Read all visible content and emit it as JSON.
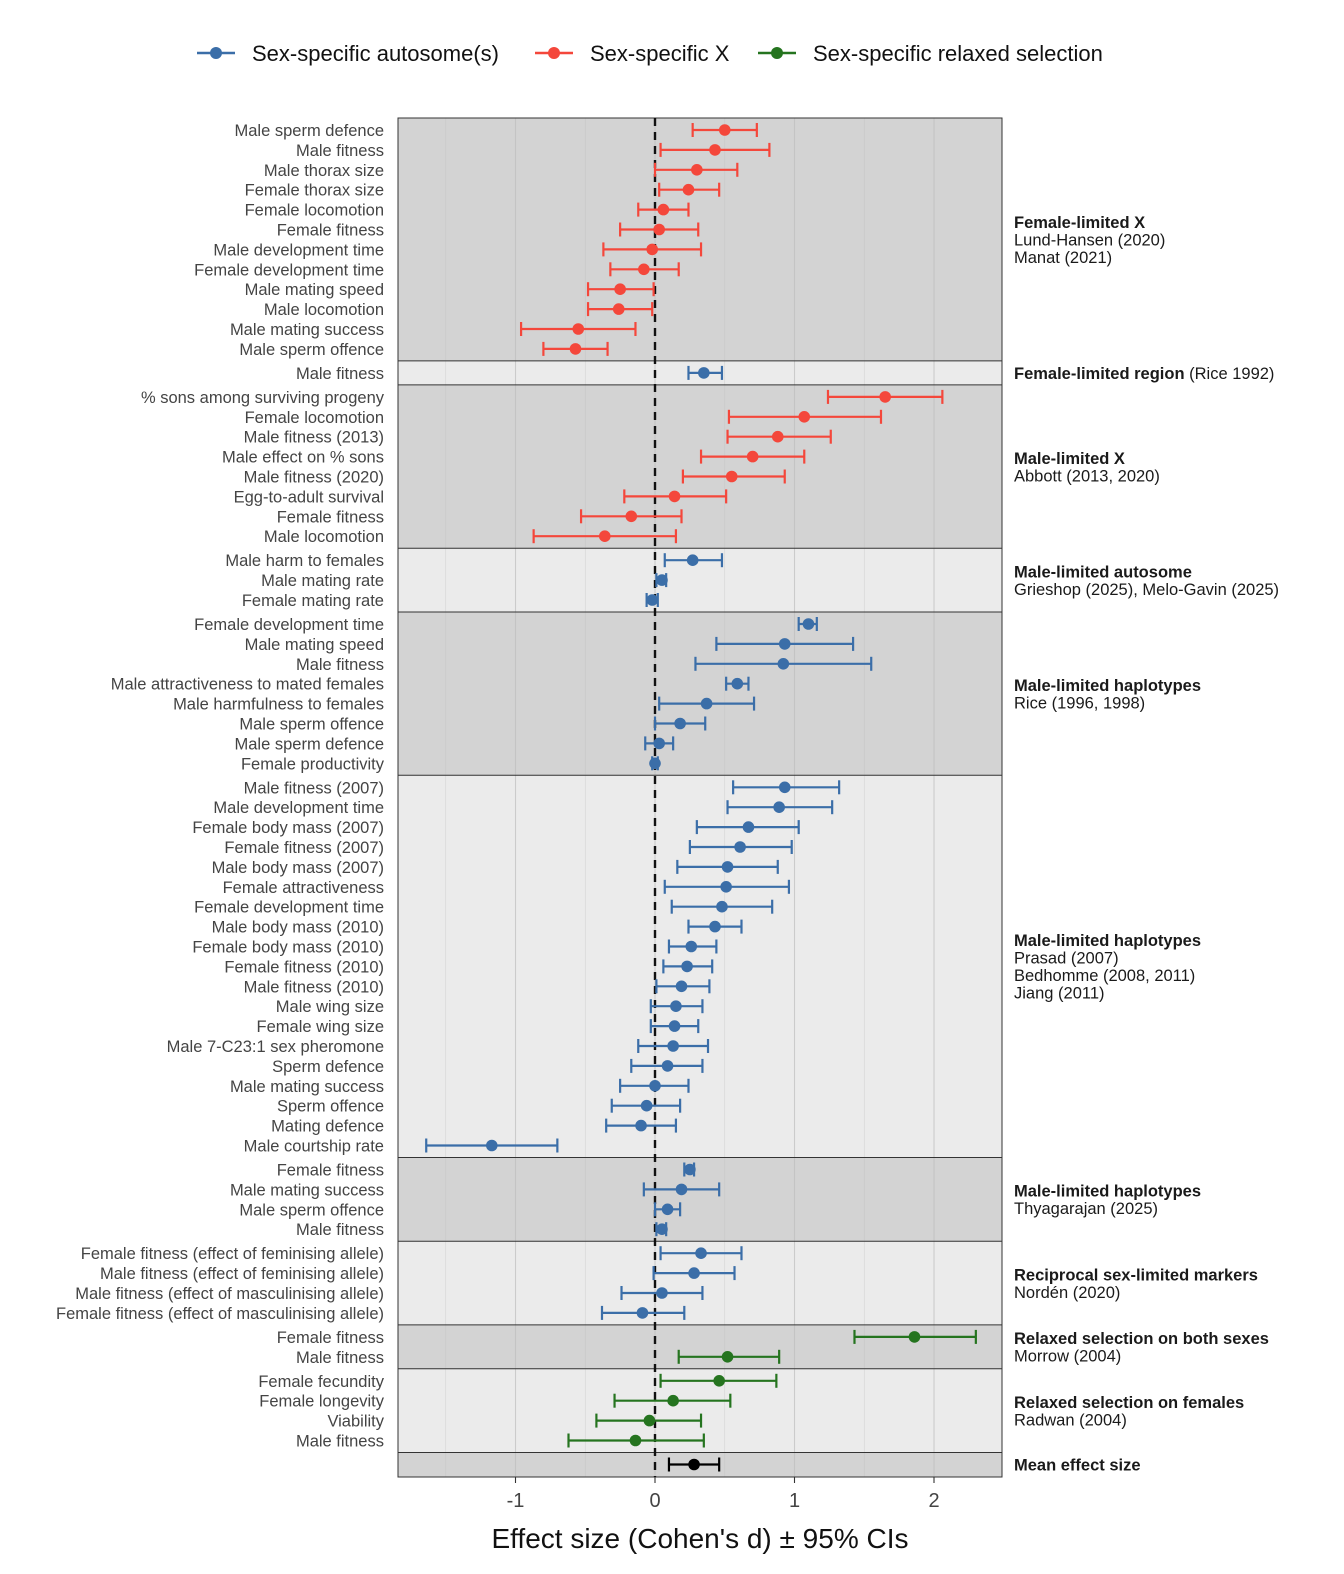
{
  "chart_data": {
    "type": "forest",
    "xlabel": "Effect size (Cohen's d) ± 95% CIs",
    "xlim": [
      -1.85,
      2.5
    ],
    "xticks": [
      -1,
      0,
      1,
      2
    ],
    "xtick_labels": [
      "-1",
      "0",
      "1",
      "2"
    ],
    "reference_line": 0,
    "colors": {
      "autosome": "#3b6ea8",
      "x": "#f4473b",
      "relaxed": "#25741f",
      "mean": "#000000"
    },
    "legend": [
      {
        "key": "autosome",
        "label": "Sex-specific autosome(s)"
      },
      {
        "key": "x",
        "label": "Sex-specific X"
      },
      {
        "key": "relaxed",
        "label": "Sex-specific relaxed selection"
      }
    ],
    "groups": [
      {
        "title": "Female-limited X",
        "title_suffix": "",
        "citations": [
          "Lund-Hansen (2020)",
          "Manat (2021)"
        ],
        "series": "x",
        "rows": [
          {
            "label": "Male sperm defence",
            "d": 0.5,
            "lo": 0.27,
            "hi": 0.73
          },
          {
            "label": "Male fitness",
            "d": 0.43,
            "lo": 0.04,
            "hi": 0.82
          },
          {
            "label": "Male thorax size",
            "d": 0.3,
            "lo": 0.0,
            "hi": 0.59
          },
          {
            "label": "Female thorax size",
            "d": 0.24,
            "lo": 0.03,
            "hi": 0.46
          },
          {
            "label": "Female locomotion",
            "d": 0.06,
            "lo": -0.12,
            "hi": 0.24
          },
          {
            "label": "Female fitness",
            "d": 0.03,
            "lo": -0.25,
            "hi": 0.31
          },
          {
            "label": "Male development time",
            "d": -0.02,
            "lo": -0.37,
            "hi": 0.33
          },
          {
            "label": "Female development time",
            "d": -0.08,
            "lo": -0.32,
            "hi": 0.17
          },
          {
            "label": "Male mating speed",
            "d": -0.25,
            "lo": -0.48,
            "hi": -0.01
          },
          {
            "label": "Male locomotion",
            "d": -0.26,
            "lo": -0.48,
            "hi": -0.02
          },
          {
            "label": "Male mating success",
            "d": -0.55,
            "lo": -0.96,
            "hi": -0.14
          },
          {
            "label": "Male sperm offence",
            "d": -0.57,
            "lo": -0.8,
            "hi": -0.34
          }
        ]
      },
      {
        "title": "Female-limited region",
        "title_suffix": " (Rice 1992)",
        "citations": [],
        "series": "autosome",
        "rows": [
          {
            "label": "Male fitness",
            "d": 0.35,
            "lo": 0.24,
            "hi": 0.48
          }
        ]
      },
      {
        "title": "Male-limited X",
        "title_suffix": "",
        "citations": [
          "Abbott (2013, 2020)"
        ],
        "series": "x",
        "rows": [
          {
            "label": "% sons among surviving progeny",
            "d": 1.65,
            "lo": 1.24,
            "hi": 2.06
          },
          {
            "label": "Female locomotion",
            "d": 1.07,
            "lo": 0.53,
            "hi": 1.62
          },
          {
            "label": "Male fitness (2013)",
            "d": 0.88,
            "lo": 0.52,
            "hi": 1.26
          },
          {
            "label": "Male effect on % sons",
            "d": 0.7,
            "lo": 0.33,
            "hi": 1.07
          },
          {
            "label": "Male fitness (2020)",
            "d": 0.55,
            "lo": 0.2,
            "hi": 0.93
          },
          {
            "label": "Egg-to-adult survival",
            "d": 0.14,
            "lo": -0.22,
            "hi": 0.51
          },
          {
            "label": "Female fitness",
            "d": -0.17,
            "lo": -0.53,
            "hi": 0.19
          },
          {
            "label": "Male locomotion",
            "d": -0.36,
            "lo": -0.87,
            "hi": 0.15
          }
        ]
      },
      {
        "title": "Male-limited autosome",
        "title_suffix": "",
        "citations": [
          "Grieshop (2025), Melo-Gavin (2025)"
        ],
        "series": "autosome",
        "rows": [
          {
            "label": "Male harm to females",
            "d": 0.27,
            "lo": 0.07,
            "hi": 0.48
          },
          {
            "label": "Male mating rate",
            "d": 0.05,
            "lo": 0.01,
            "hi": 0.08
          },
          {
            "label": "Female mating rate",
            "d": -0.02,
            "lo": -0.06,
            "hi": 0.02
          }
        ]
      },
      {
        "title": "Male-limited haplotypes",
        "title_suffix": "",
        "citations": [
          "Rice (1996, 1998)"
        ],
        "series": "autosome",
        "rows": [
          {
            "label": "Female development time",
            "d": 1.1,
            "lo": 1.03,
            "hi": 1.16
          },
          {
            "label": "Male mating speed",
            "d": 0.93,
            "lo": 0.44,
            "hi": 1.42
          },
          {
            "label": "Male fitness",
            "d": 0.92,
            "lo": 0.29,
            "hi": 1.55
          },
          {
            "label": "Male attractiveness to mated females",
            "d": 0.59,
            "lo": 0.51,
            "hi": 0.67
          },
          {
            "label": "Male harmfulness to females",
            "d": 0.37,
            "lo": 0.03,
            "hi": 0.71
          },
          {
            "label": "Male sperm offence",
            "d": 0.18,
            "lo": 0.0,
            "hi": 0.36
          },
          {
            "label": "Male sperm defence",
            "d": 0.03,
            "lo": -0.07,
            "hi": 0.13
          },
          {
            "label": "Female productivity",
            "d": 0.0,
            "lo": -0.02,
            "hi": 0.02
          }
        ]
      },
      {
        "title": "Male-limited haplotypes",
        "title_suffix": "",
        "citations": [
          "Prasad (2007)",
          "Bedhomme (2008, 2011)",
          "Jiang (2011)"
        ],
        "series": "autosome",
        "rows": [
          {
            "label": "Male fitness (2007)",
            "d": 0.93,
            "lo": 0.56,
            "hi": 1.32
          },
          {
            "label": "Male development time",
            "d": 0.89,
            "lo": 0.52,
            "hi": 1.27
          },
          {
            "label": "Female body mass (2007)",
            "d": 0.67,
            "lo": 0.3,
            "hi": 1.03
          },
          {
            "label": "Female fitness (2007)",
            "d": 0.61,
            "lo": 0.25,
            "hi": 0.98
          },
          {
            "label": "Male body mass (2007)",
            "d": 0.52,
            "lo": 0.16,
            "hi": 0.88
          },
          {
            "label": "Female attractiveness",
            "d": 0.51,
            "lo": 0.07,
            "hi": 0.96
          },
          {
            "label": "Female development time",
            "d": 0.48,
            "lo": 0.12,
            "hi": 0.84
          },
          {
            "label": "Male body mass  (2010)",
            "d": 0.43,
            "lo": 0.24,
            "hi": 0.62
          },
          {
            "label": "Female body mass (2010)",
            "d": 0.26,
            "lo": 0.1,
            "hi": 0.44
          },
          {
            "label": "Female fitness (2010)",
            "d": 0.23,
            "lo": 0.06,
            "hi": 0.41
          },
          {
            "label": "Male fitness  (2010)",
            "d": 0.19,
            "lo": 0.01,
            "hi": 0.39
          },
          {
            "label": "Male wing size",
            "d": 0.15,
            "lo": -0.03,
            "hi": 0.34
          },
          {
            "label": "Female wing size",
            "d": 0.14,
            "lo": -0.03,
            "hi": 0.31
          },
          {
            "label": "Male 7-C23:1 sex pheromone",
            "d": 0.13,
            "lo": -0.12,
            "hi": 0.38
          },
          {
            "label": "Sperm defence",
            "d": 0.09,
            "lo": -0.17,
            "hi": 0.34
          },
          {
            "label": "Male mating success",
            "d": 0.0,
            "lo": -0.25,
            "hi": 0.24
          },
          {
            "label": "Sperm offence",
            "d": -0.06,
            "lo": -0.31,
            "hi": 0.18
          },
          {
            "label": "Mating defence",
            "d": -0.1,
            "lo": -0.35,
            "hi": 0.15
          },
          {
            "label": "Male courtship rate",
            "d": -1.17,
            "lo": -1.64,
            "hi": -0.7
          }
        ]
      },
      {
        "title": "Male-limited haplotypes",
        "title_suffix": "",
        "citations": [
          "Thyagarajan (2025)"
        ],
        "series": "autosome",
        "rows": [
          {
            "label": "Female fitness",
            "d": 0.25,
            "lo": 0.21,
            "hi": 0.28
          },
          {
            "label": "Male mating success",
            "d": 0.19,
            "lo": -0.08,
            "hi": 0.46
          },
          {
            "label": "Male sperm offence",
            "d": 0.09,
            "lo": 0.0,
            "hi": 0.18
          },
          {
            "label": "Male fitness",
            "d": 0.05,
            "lo": 0.01,
            "hi": 0.08
          }
        ]
      },
      {
        "title": "Reciprocal sex-limited markers",
        "title_suffix": "",
        "citations": [
          "Nordén (2020)"
        ],
        "series": "autosome",
        "rows": [
          {
            "label": "Female fitness (effect of feminising allele)",
            "d": 0.33,
            "lo": 0.04,
            "hi": 0.62
          },
          {
            "label": "Male fitness (effect of feminising allele)",
            "d": 0.28,
            "lo": -0.01,
            "hi": 0.57
          },
          {
            "label": "Male fitness (effect of masculinising allele)",
            "d": 0.05,
            "lo": -0.24,
            "hi": 0.34
          },
          {
            "label": "Female fitness (effect of masculinising allele)",
            "d": -0.09,
            "lo": -0.38,
            "hi": 0.21
          }
        ]
      },
      {
        "title": "Relaxed selection on both sexes",
        "title_suffix": "",
        "citations": [
          "Morrow (2004)"
        ],
        "series": "relaxed",
        "rows": [
          {
            "label": "Female fitness",
            "d": 1.86,
            "lo": 1.43,
            "hi": 2.3
          },
          {
            "label": "Male fitness",
            "d": 0.52,
            "lo": 0.17,
            "hi": 0.89
          }
        ]
      },
      {
        "title": "Relaxed selection on females",
        "title_suffix": "",
        "citations": [
          "Radwan (2004)"
        ],
        "series": "relaxed",
        "rows": [
          {
            "label": "Female fecundity",
            "d": 0.46,
            "lo": 0.04,
            "hi": 0.87
          },
          {
            "label": "Female longevity",
            "d": 0.13,
            "lo": -0.29,
            "hi": 0.54
          },
          {
            "label": "Viability",
            "d": -0.04,
            "lo": -0.42,
            "hi": 0.33
          },
          {
            "label": "Male fitness",
            "d": -0.14,
            "lo": -0.62,
            "hi": 0.35
          }
        ]
      },
      {
        "title": "Mean effect size",
        "title_suffix": "",
        "citations": [],
        "series": "mean",
        "rows": [
          {
            "label": "",
            "d": 0.28,
            "lo": 0.1,
            "hi": 0.46
          }
        ]
      }
    ]
  }
}
